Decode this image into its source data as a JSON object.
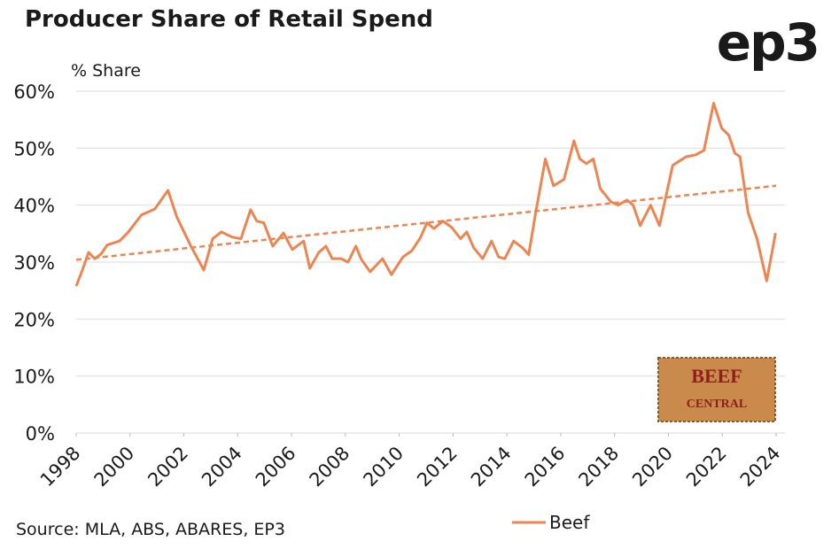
{
  "chart_data": {
    "type": "line",
    "title": "Producer Share of Retail Spend",
    "y_label": "% Share",
    "source": "Source: MLA, ABS, ABARES, EP3",
    "x": [
      1998.0,
      1998.23,
      1998.46,
      1998.69,
      1998.92,
      1999.15,
      1999.61,
      1999.94,
      2000.43,
      2000.92,
      2001.41,
      2001.74,
      2002.24,
      2002.74,
      2003.07,
      2003.39,
      2003.79,
      2004.12,
      2004.48,
      2004.71,
      2004.97,
      2005.3,
      2005.7,
      2006.03,
      2006.45,
      2006.68,
      2007.01,
      2007.28,
      2007.51,
      2007.84,
      2008.1,
      2008.39,
      2008.59,
      2008.92,
      2009.38,
      2009.71,
      2010.14,
      2010.47,
      2010.8,
      2011.03,
      2011.29,
      2011.62,
      2011.95,
      2012.28,
      2012.51,
      2012.77,
      2013.1,
      2013.43,
      2013.69,
      2013.92,
      2014.25,
      2014.58,
      2014.81,
      2015.07,
      2015.43,
      2015.73,
      2016.12,
      2016.49,
      2016.71,
      2016.95,
      2017.21,
      2017.47,
      2017.86,
      2018.13,
      2018.46,
      2018.69,
      2018.95,
      2019.34,
      2019.67,
      2020.16,
      2020.66,
      2020.99,
      2021.32,
      2021.68,
      2021.98,
      2022.24,
      2022.47,
      2022.66,
      2022.96,
      2023.29,
      2023.65,
      2023.98
    ],
    "series": [
      {
        "name": "Beef",
        "color": "#ee8550",
        "values": [
          25.8,
          28.6,
          31.7,
          30.6,
          31.4,
          33.0,
          33.7,
          35.3,
          38.3,
          39.3,
          42.6,
          37.9,
          33.0,
          28.6,
          34.1,
          35.3,
          34.4,
          34.1,
          39.2,
          37.2,
          36.9,
          32.8,
          35.1,
          32.2,
          33.7,
          28.9,
          31.7,
          32.8,
          30.6,
          30.6,
          30.0,
          32.8,
          30.5,
          28.3,
          30.6,
          27.8,
          30.9,
          32.0,
          34.4,
          36.9,
          35.9,
          37.2,
          36.1,
          34.1,
          35.3,
          32.5,
          30.6,
          33.7,
          30.9,
          30.6,
          33.7,
          32.5,
          31.3,
          38.7,
          48.1,
          43.4,
          44.5,
          51.3,
          48.1,
          47.3,
          48.1,
          42.9,
          40.6,
          40.0,
          40.9,
          40.0,
          36.4,
          40.0,
          36.4,
          47.0,
          48.5,
          48.8,
          49.6,
          57.9,
          53.5,
          52.3,
          49.1,
          48.5,
          38.7,
          34.1,
          26.7,
          35.1
        ]
      }
    ],
    "trendline": {
      "x": [
        1998,
        2024
      ],
      "values": [
        30.4,
        43.4
      ],
      "color": "#ee8550",
      "dashed": true
    },
    "xlim": [
      1998,
      2024
    ],
    "xticks": [
      1998,
      2000,
      2002,
      2004,
      2006,
      2008,
      2010,
      2012,
      2014,
      2016,
      2018,
      2020,
      2022,
      2024
    ],
    "ylim": [
      0,
      60
    ],
    "yticks": [
      {
        "value": 0,
        "label": "0%"
      },
      {
        "value": 10,
        "label": "10%"
      },
      {
        "value": 20,
        "label": "20%"
      },
      {
        "value": 30,
        "label": "30%"
      },
      {
        "value": 40,
        "label": "40%"
      },
      {
        "value": 50,
        "label": "50%"
      },
      {
        "value": 60,
        "label": "60%"
      }
    ],
    "grid": true,
    "legend": "bottom-right"
  },
  "logos": {
    "brand": "ep3",
    "badge_top": "BEEF",
    "badge_bottom": "CENTRAL"
  }
}
